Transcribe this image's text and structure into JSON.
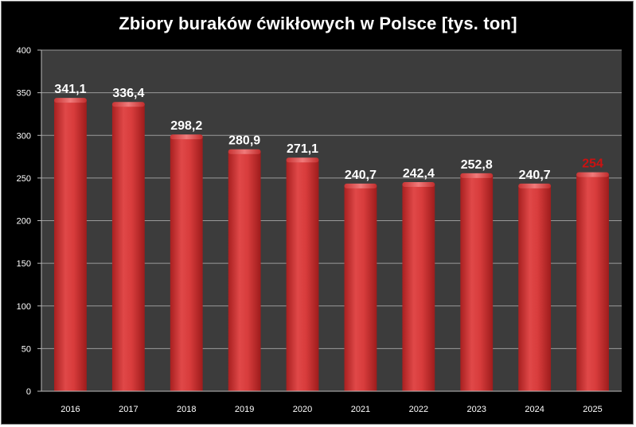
{
  "chart_data": {
    "type": "bar",
    "title": "Zbiory buraków ćwikłowych w Polsce [tys. ton]",
    "xlabel": "",
    "ylabel": "",
    "categories": [
      "2016",
      "2017",
      "2018",
      "2019",
      "2020",
      "2021",
      "2022",
      "2023",
      "2024",
      "2025"
    ],
    "values": [
      341.1,
      336.4,
      298.2,
      280.9,
      271.1,
      240.7,
      242.4,
      252.8,
      240.7,
      254
    ],
    "data_labels": [
      "341,1",
      "336,4",
      "298,2",
      "280,9",
      "271,1",
      "240,7",
      "242,4",
      "252,8",
      "240,7",
      "254"
    ],
    "ylim": [
      0,
      400
    ],
    "yticks": [
      0,
      50,
      100,
      150,
      200,
      250,
      300,
      350,
      400
    ],
    "grid": true,
    "legend": "none",
    "colors": {
      "bar": "#d73b3b",
      "label": "#ffffff",
      "highlight_label": "#cc1111",
      "plot_background": "#3c3c3c",
      "grid": "#9a9a9a"
    },
    "highlight_index": 9
  }
}
